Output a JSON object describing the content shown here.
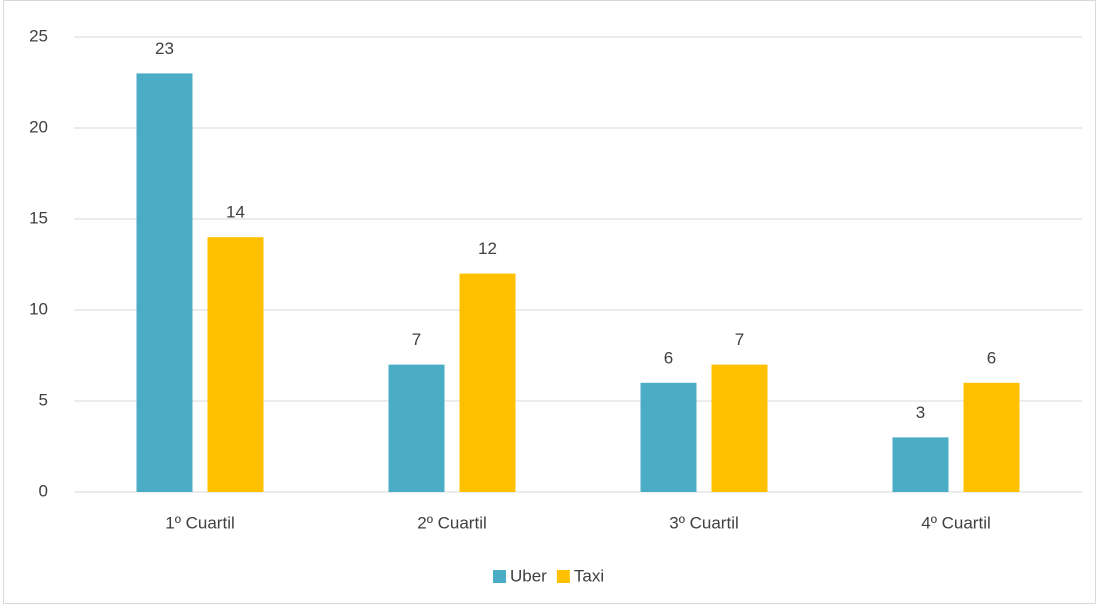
{
  "chart_data": {
    "type": "bar",
    "categories": [
      "1º Cuartil",
      "2º Cuartil",
      "3º Cuartil",
      "4º Cuartil"
    ],
    "series": [
      {
        "name": "Uber",
        "color": "#4bacc6",
        "values": [
          23,
          7,
          6,
          3
        ]
      },
      {
        "name": "Taxi",
        "color": "#ffc000",
        "values": [
          14,
          12,
          7,
          6
        ]
      }
    ],
    "ylim": [
      0,
      25
    ],
    "yticks": [
      0,
      5,
      10,
      15,
      20,
      25
    ],
    "grid": true,
    "legend": "bottom"
  }
}
